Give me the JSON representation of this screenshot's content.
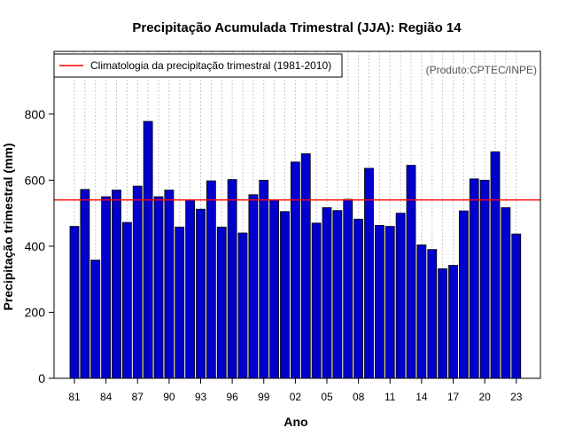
{
  "chart_data": {
    "type": "bar",
    "title": "Precipitação Acumulada Trimestral (JJA): Região 14",
    "xlabel": "Ano",
    "ylabel": "Precipitação trimestral (mm)",
    "credit": "(Produto:CPTEC/INPE)",
    "ylim": [
      0,
      990
    ],
    "yticks": [
      0,
      200,
      400,
      600,
      800
    ],
    "ytick_labels": [
      "0",
      "200",
      "400",
      "600",
      "800"
    ],
    "categories": [
      "1981",
      "1982",
      "1983",
      "1984",
      "1985",
      "1986",
      "1987",
      "1988",
      "1989",
      "1990",
      "1991",
      "1992",
      "1993",
      "1994",
      "1995",
      "1996",
      "1997",
      "1998",
      "1999",
      "2000",
      "2001",
      "2002",
      "2003",
      "2004",
      "2005",
      "2006",
      "2007",
      "2008",
      "2009",
      "2010",
      "2011",
      "2012",
      "2013",
      "2014",
      "2015",
      "2016",
      "2017",
      "2018",
      "2019",
      "2020",
      "2021",
      "2022",
      "2023"
    ],
    "xtick_indices": [
      0,
      3,
      6,
      9,
      12,
      15,
      18,
      21,
      24,
      27,
      30,
      33,
      36,
      39,
      42
    ],
    "xtick_labels": [
      "81",
      "84",
      "87",
      "90",
      "93",
      "96",
      "99",
      "02",
      "05",
      "08",
      "11",
      "14",
      "17",
      "20",
      "23"
    ],
    "series": [
      {
        "name": "Precipitação trimestral (mm)",
        "color": "#0000cd",
        "values": [
          460,
          572,
          358,
          550,
          570,
          472,
          582,
          778,
          550,
          570,
          458,
          540,
          512,
          598,
          458,
          602,
          440,
          556,
          600,
          540,
          505,
          655,
          680,
          470,
          517,
          508,
          542,
          482,
          636,
          463,
          460,
          500,
          645,
          404,
          390,
          332,
          342,
          507,
          604,
          600,
          686,
          517,
          437
        ]
      }
    ],
    "reference_line": {
      "label": "Climatologia da precipitação trimestral (1981-2010)",
      "value": 540,
      "color": "#ff0000"
    },
    "grid": "vertical-dotted",
    "legend_position": "top-left"
  }
}
